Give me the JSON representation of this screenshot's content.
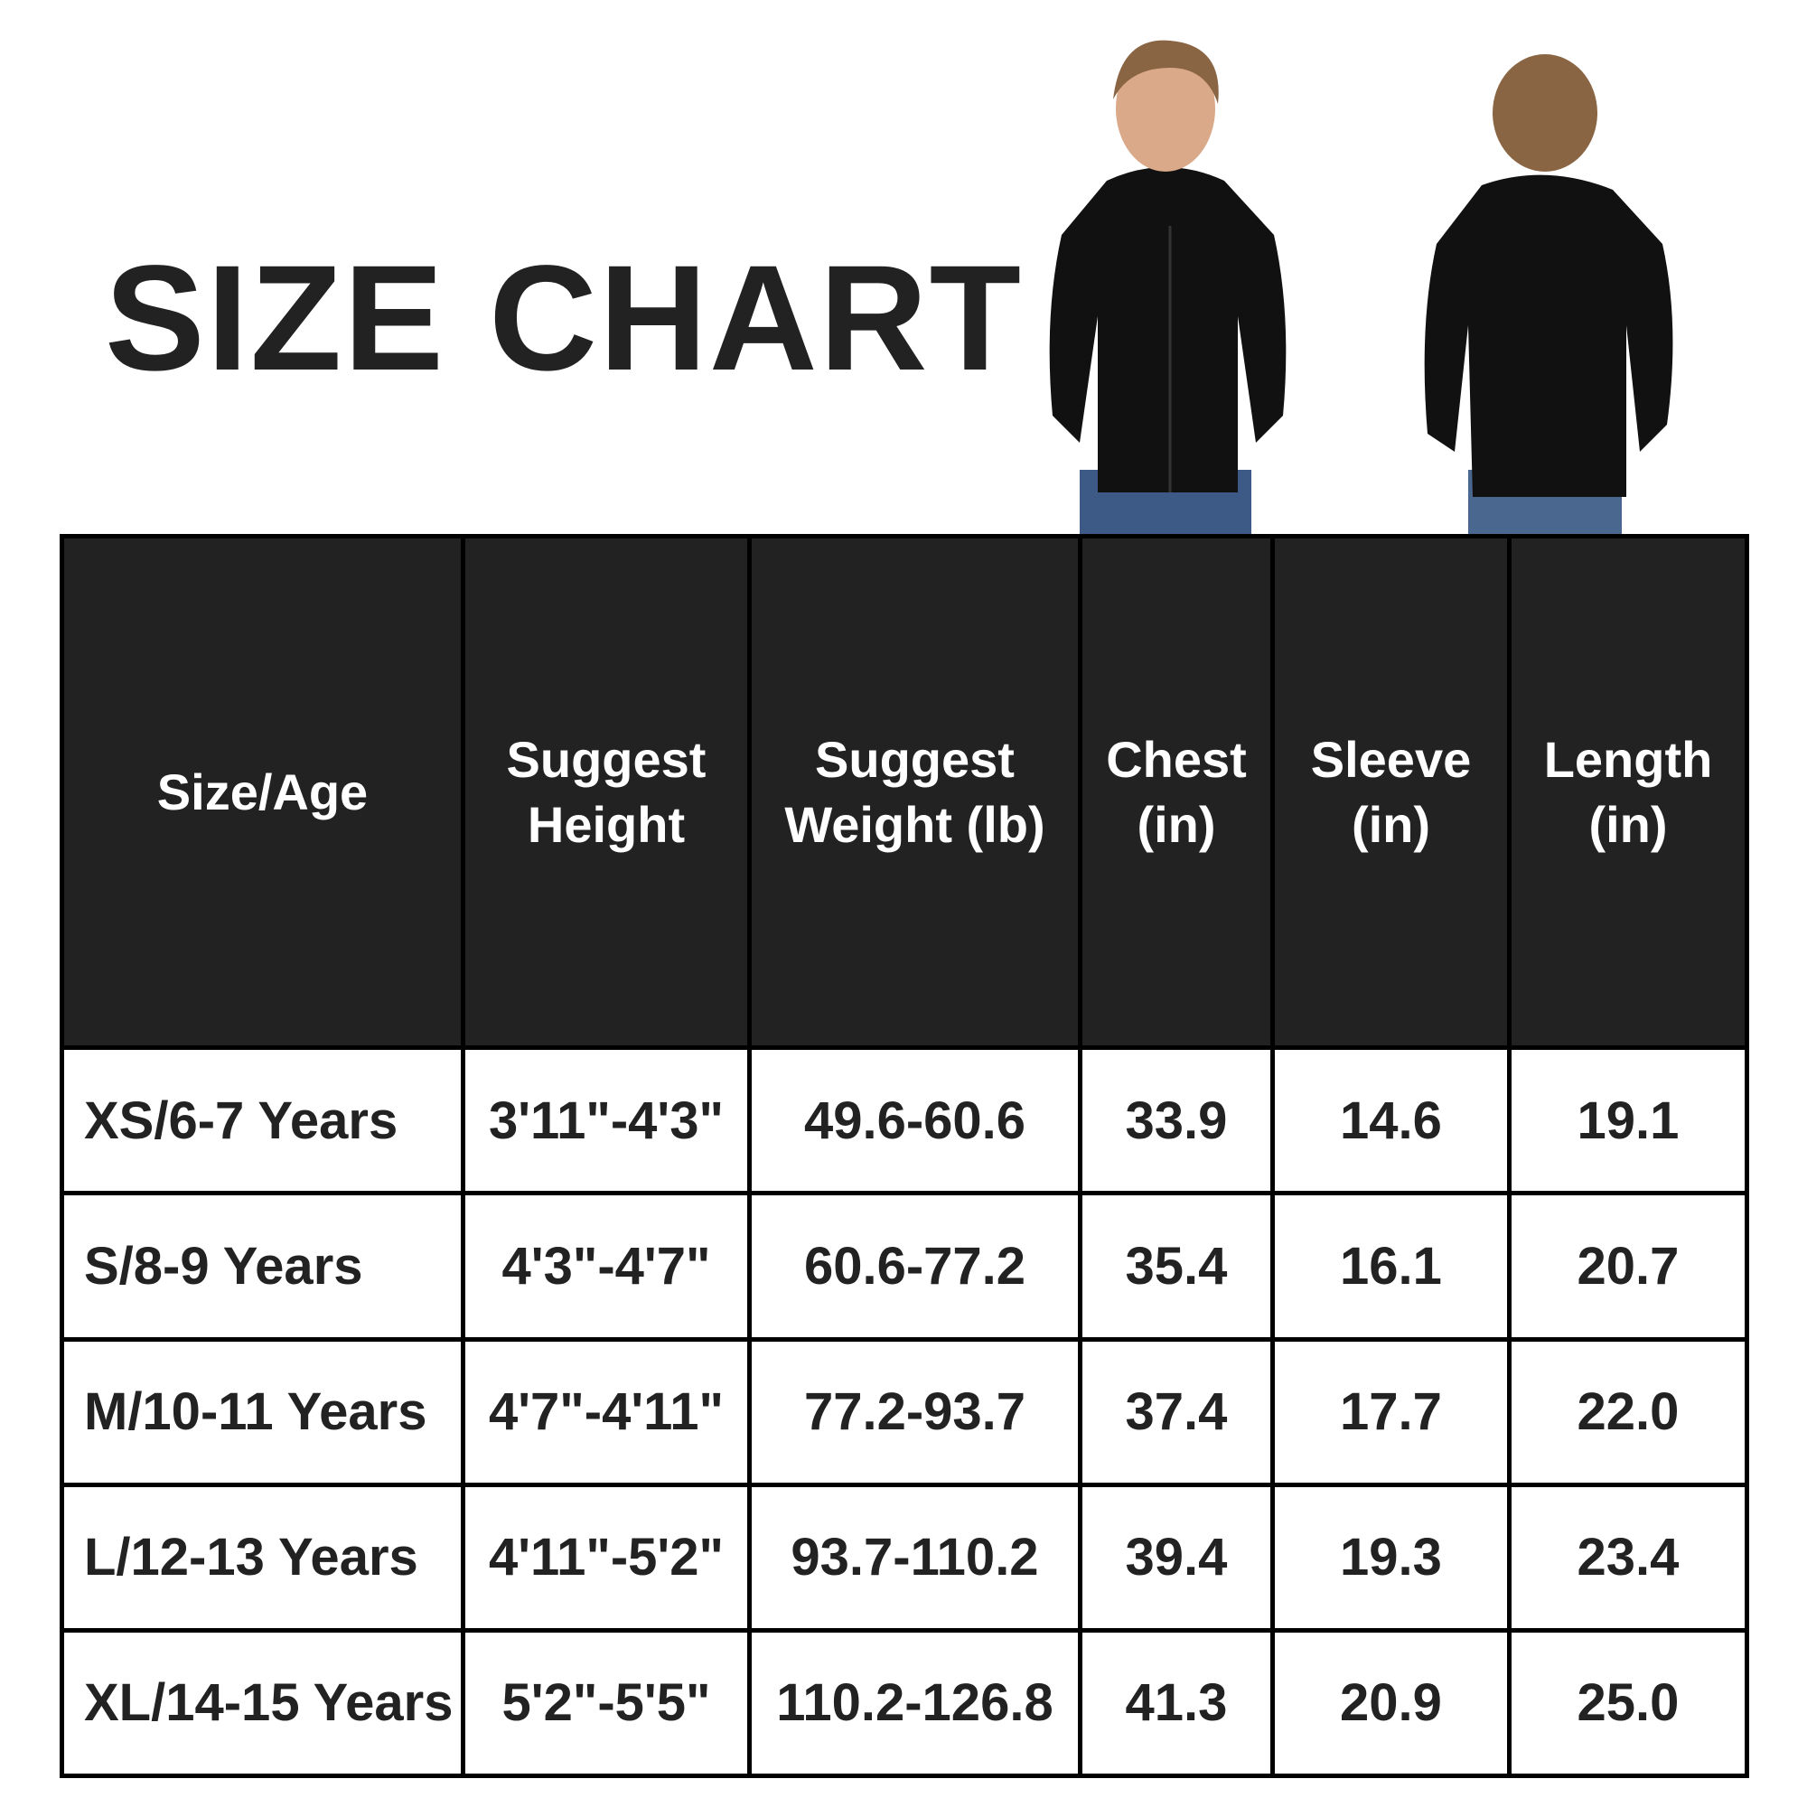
{
  "title": "SIZE CHART",
  "images": {
    "front": "child-wearing-black-zip-hoodie-front",
    "back": "child-wearing-black-zip-hoodie-back"
  },
  "table": {
    "headers": [
      "Size/Age",
      "Suggest Height",
      "Suggest Weight (lb)",
      "Chest (in)",
      "Sleeve (in)",
      "Length (in)"
    ],
    "rows": [
      [
        "XS/6-7 Years",
        "3'11\"-4'3\"",
        "49.6-60.6",
        "33.9",
        "14.6",
        "19.1"
      ],
      [
        "S/8-9 Years",
        "4'3\"-4'7\"",
        "60.6-77.2",
        "35.4",
        "16.1",
        "20.7"
      ],
      [
        "M/10-11 Years",
        "4'7\"-4'11\"",
        "77.2-93.7",
        "37.4",
        "17.7",
        "22.0"
      ],
      [
        "L/12-13 Years",
        "4'11\"-5'2\"",
        "93.7-110.2",
        "39.4",
        "19.3",
        "23.4"
      ],
      [
        "XL/14-15 Years",
        "5'2\"-5'5\"",
        "110.2-126.8",
        "41.3",
        "20.9",
        "25.0"
      ]
    ]
  },
  "colors": {
    "header_bg": "#222222",
    "border": "#000000",
    "text": "#222222"
  }
}
